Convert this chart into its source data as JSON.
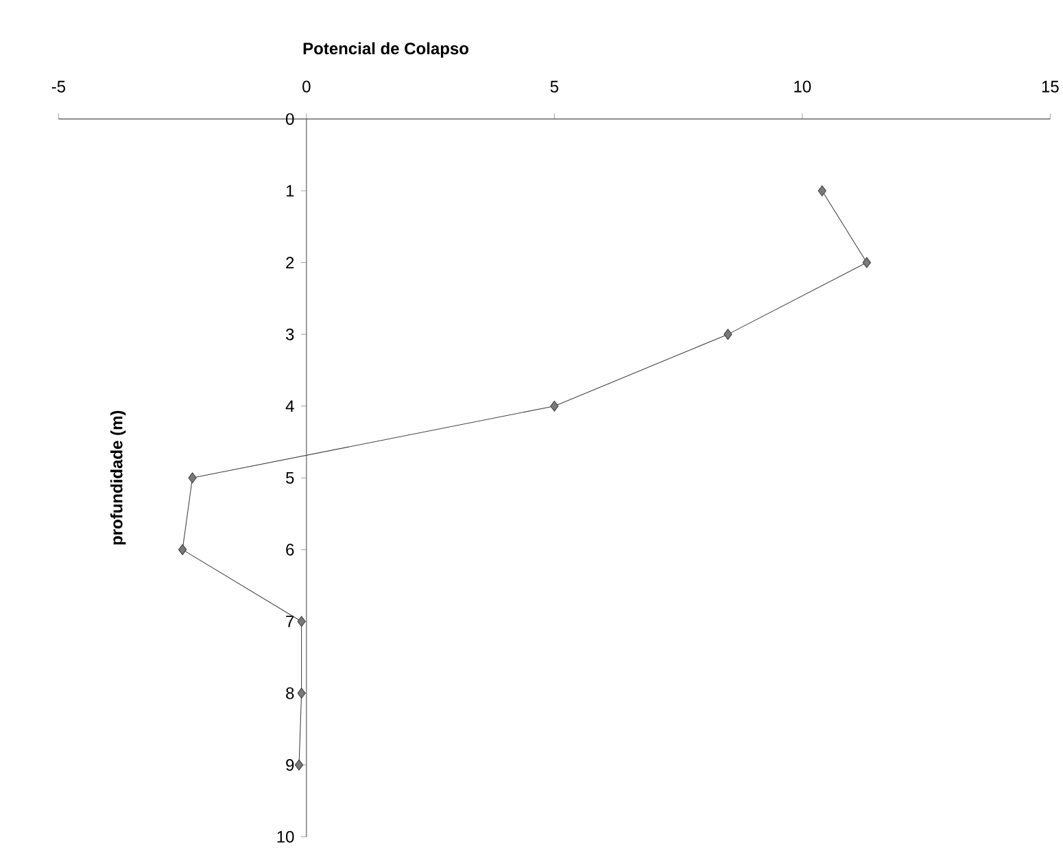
{
  "chart_data": {
    "type": "line",
    "title": "Potencial de Colapso",
    "ylabel": "profundidade (m)",
    "x": [
      10.4,
      11.3,
      8.5,
      5.0,
      -2.3,
      -2.5,
      -0.1,
      -0.1,
      -0.15
    ],
    "values": [
      1,
      2,
      3,
      4,
      5,
      6,
      7,
      8,
      9
    ],
    "color": "#404040",
    "marker": "diamond",
    "line_style": "solid",
    "grid": false,
    "xlim": [
      -5,
      15
    ],
    "xticks": [
      -5,
      0,
      5,
      10,
      15
    ],
    "ylim": [
      10,
      0
    ],
    "yticks": [
      0,
      1,
      2,
      3,
      4,
      5,
      6,
      7,
      8,
      9,
      10
    ]
  }
}
